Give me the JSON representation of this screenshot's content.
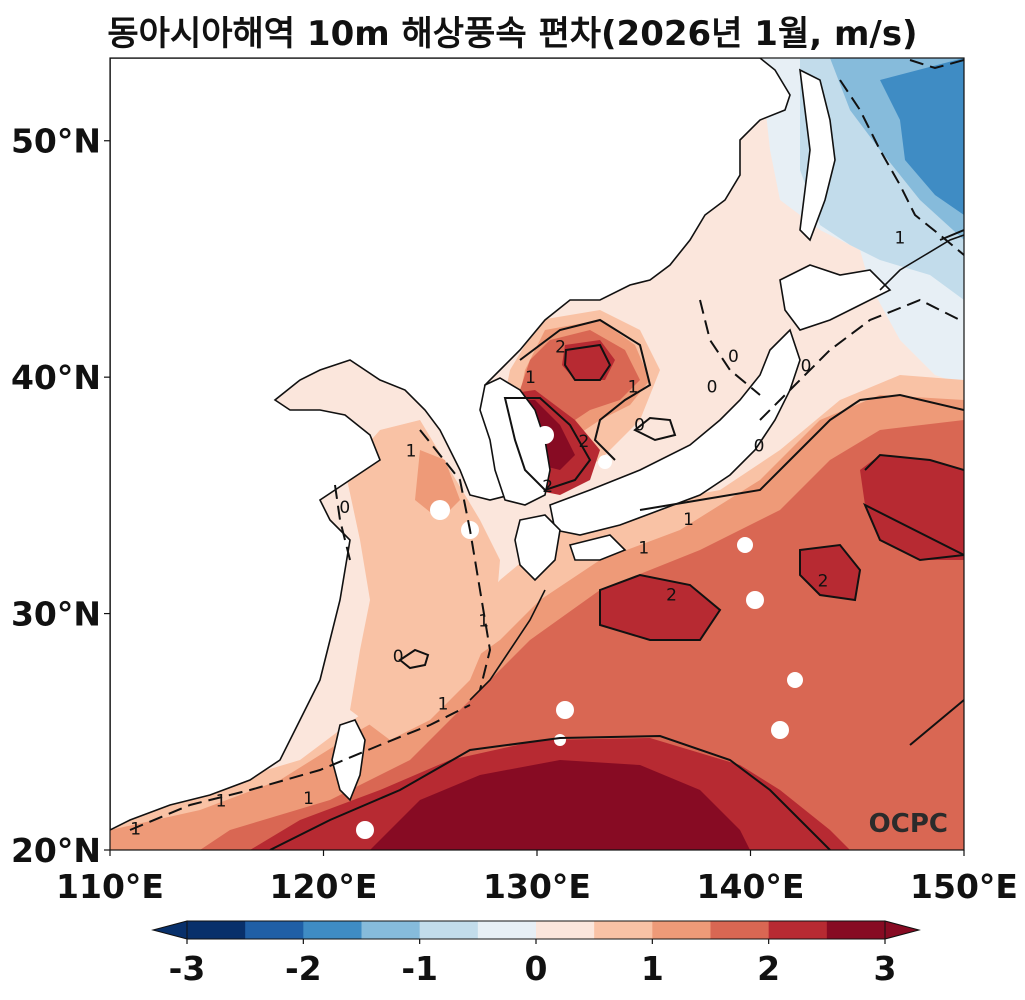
{
  "title": "동아시아해역 10m 해상풍속 편차(2026년 1월, m/s)",
  "map": {
    "lon_range": [
      110,
      150
    ],
    "lat_range": [
      20,
      53.5
    ],
    "lon_ticks": [
      {
        "value": 110,
        "label": "110°E"
      },
      {
        "value": 120,
        "label": "120°E"
      },
      {
        "value": 130,
        "label": "130°E"
      },
      {
        "value": 140,
        "label": "140°E"
      },
      {
        "value": 150,
        "label": "150°E"
      }
    ],
    "lat_ticks": [
      {
        "value": 20,
        "label": "20°N"
      },
      {
        "value": 30,
        "label": "30°N"
      },
      {
        "value": 40,
        "label": "40°N"
      },
      {
        "value": 50,
        "label": "50°N"
      }
    ],
    "contour_labels": [
      {
        "text": "2",
        "lon": 131.1,
        "lat": 41.3
      },
      {
        "text": "1",
        "lon": 129.7,
        "lat": 40.0
      },
      {
        "text": "1",
        "lon": 134.5,
        "lat": 39.6
      },
      {
        "text": "0",
        "lon": 139.2,
        "lat": 40.9
      },
      {
        "text": "0",
        "lon": 138.2,
        "lat": 39.6
      },
      {
        "text": "0",
        "lon": 142.6,
        "lat": 40.5
      },
      {
        "text": "0",
        "lon": 134.8,
        "lat": 38.0
      },
      {
        "text": "2",
        "lon": 132.2,
        "lat": 37.3
      },
      {
        "text": "2",
        "lon": 130.5,
        "lat": 35.4
      },
      {
        "text": "1",
        "lon": 124.1,
        "lat": 36.9
      },
      {
        "text": "0",
        "lon": 121.0,
        "lat": 34.5
      },
      {
        "text": "1",
        "lon": 137.1,
        "lat": 34.0
      },
      {
        "text": "1",
        "lon": 135.0,
        "lat": 32.8
      },
      {
        "text": "0",
        "lon": 140.4,
        "lat": 37.1
      },
      {
        "text": "2",
        "lon": 136.3,
        "lat": 30.8
      },
      {
        "text": "2",
        "lon": 143.4,
        "lat": 31.4
      },
      {
        "text": "1",
        "lon": 147.0,
        "lat": 45.9
      },
      {
        "text": "1",
        "lon": 127.5,
        "lat": 29.7
      },
      {
        "text": "0",
        "lon": 123.5,
        "lat": 28.2
      },
      {
        "text": "1",
        "lon": 125.6,
        "lat": 26.2
      },
      {
        "text": "1",
        "lon": 115.2,
        "lat": 22.1
      },
      {
        "text": "1",
        "lon": 119.3,
        "lat": 22.2
      },
      {
        "text": "1",
        "lon": 111.2,
        "lat": 20.9
      }
    ],
    "logo": "OCPC"
  },
  "colorbar": {
    "levels": [
      -3,
      -2.5,
      -2,
      -1.5,
      -1,
      -0.5,
      0,
      0.5,
      1,
      1.5,
      2,
      2.5,
      3
    ],
    "colors": [
      "#08306b",
      "#1f5fa6",
      "#3f8cc4",
      "#86bbdb",
      "#c2dceb",
      "#e7eff5",
      "#fbe6dc",
      "#f9c2a5",
      "#ee9a78",
      "#d96753",
      "#b72a32",
      "#870b23"
    ],
    "under_color": "#08306b",
    "over_color": "#870b23",
    "ticks": [
      {
        "value": -3,
        "label": "-3"
      },
      {
        "value": -2,
        "label": "-2"
      },
      {
        "value": -1,
        "label": "-1"
      },
      {
        "value": 0,
        "label": "0"
      },
      {
        "value": 1,
        "label": "1"
      },
      {
        "value": 2,
        "label": "2"
      },
      {
        "value": 3,
        "label": "3"
      }
    ]
  }
}
